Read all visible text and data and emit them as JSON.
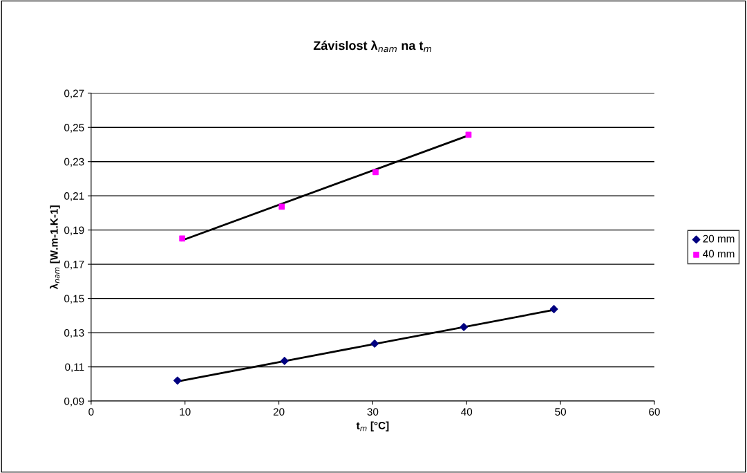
{
  "chart_data": {
    "type": "scatter",
    "title": "Závislost λ$_{nam}$ na t$_{m}$",
    "xlabel": "t$_{m}$ [°C]",
    "ylabel": "λ$_{nam}$ [W.m-1.K-1]",
    "series": [
      {
        "name": "20 mm",
        "color": "#000080",
        "marker": "diamond",
        "x": [
          9.2,
          20.6,
          30.2,
          39.7,
          49.3
        ],
        "values": [
          0.102,
          0.1135,
          0.1236,
          0.1333,
          0.1438
        ]
      },
      {
        "name": "40 mm",
        "color": "#ff00ff",
        "marker": "square",
        "x": [
          9.7,
          20.3,
          30.3,
          40.2
        ],
        "values": [
          0.1851,
          0.2037,
          0.2239,
          0.2457
        ]
      },
      {
        "type": "line",
        "color": "#000000",
        "x": [
          9.2,
          49.3
        ],
        "values": [
          0.1015,
          0.1433
        ]
      },
      {
        "type": "line",
        "color": "#000000",
        "x": [
          9.7,
          40.2
        ],
        "values": [
          0.184,
          0.2453
        ]
      }
    ],
    "xlim": [
      0,
      60
    ],
    "xticks": [
      0,
      10,
      20,
      30,
      40,
      50,
      60
    ],
    "ylim": [
      0.09,
      0.27
    ],
    "yticks": [
      {
        "value": 0.09,
        "label": "0,09"
      },
      {
        "value": 0.11,
        "label": "0,11"
      },
      {
        "value": 0.13,
        "label": "0,13"
      },
      {
        "value": 0.15,
        "label": "0,15"
      },
      {
        "value": 0.17,
        "label": "0,17"
      },
      {
        "value": 0.19,
        "label": "0,19"
      },
      {
        "value": 0.21,
        "label": "0,21"
      },
      {
        "value": 0.23,
        "label": "0,23"
      },
      {
        "value": 0.25,
        "label": "0,25"
      },
      {
        "value": 0.27,
        "label": "0,27"
      }
    ],
    "grid": "y",
    "legend": "right"
  }
}
